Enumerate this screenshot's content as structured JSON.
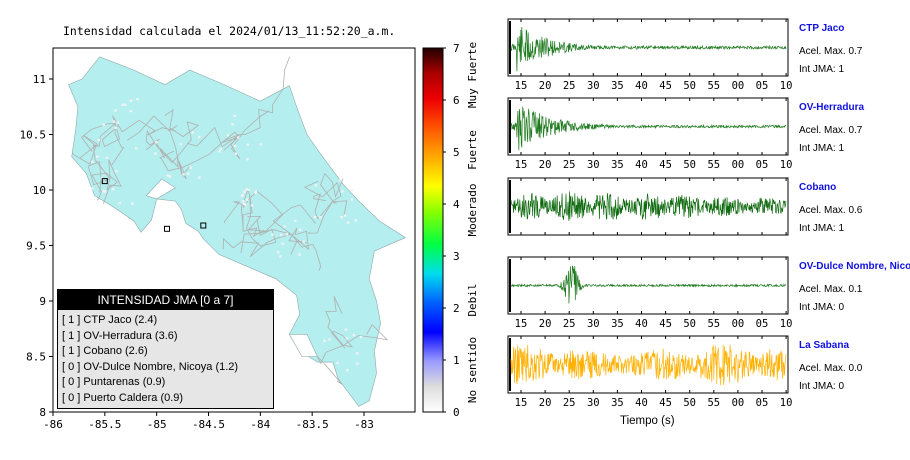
{
  "title": "Intensidad calculada el 2024/01/13_11:52:20_a.m.",
  "map": {
    "x_ticks": [
      "-86",
      "-85.5",
      "-85",
      "-84.5",
      "-84",
      "-83.5",
      "-83"
    ],
    "y_ticks": [
      "8",
      "8.5",
      "9",
      "9.5",
      "10",
      "10.5",
      "11"
    ],
    "land_color": "#b4eeee",
    "station_markers": 3
  },
  "colorbar": {
    "ticks": [
      "0",
      "1",
      "2",
      "3",
      "4",
      "5",
      "6",
      "7"
    ],
    "categories": [
      "No sentido",
      "Debil",
      "Moderado",
      "Fuerte",
      "Muy Fuerte"
    ]
  },
  "legend": {
    "title": "INTENSIDAD JMA [0 a 7]",
    "rows": [
      {
        "level": "[ 1 ]",
        "name": "CTP Jaco (2.4)"
      },
      {
        "level": "[ 1 ]",
        "name": "OV-Herradura (3.6)"
      },
      {
        "level": "[ 1 ]",
        "name": "Cobano (2.6)"
      },
      {
        "level": "[ 0 ]",
        "name": "OV-Dulce Nombre, Nicoya (1.2)"
      },
      {
        "level": "[ 0 ]",
        "name": "Puntarenas (0.9)"
      },
      {
        "level": "[ 0 ]",
        "name": "Puerto Caldera (0.9)"
      }
    ]
  },
  "waveforms": {
    "x_ticks": [
      "15",
      "20",
      "25",
      "30",
      "35",
      "40",
      "45",
      "50",
      "55",
      "00",
      "05",
      "10"
    ],
    "xlabel": "Tiempo (s)",
    "stations": [
      {
        "name": "CTP Jaco",
        "accel": "Acel. Max. 0.7",
        "jma": "Int JMA: 1",
        "color": "#1e7a1e"
      },
      {
        "name": "OV-Herradura",
        "accel": "Acel. Max. 0.7",
        "jma": "Int JMA: 1",
        "color": "#1e7a1e"
      },
      {
        "name": "Cobano",
        "accel": "Acel. Max. 0.6",
        "jma": "Int JMA: 1",
        "color": "#0f6a0f"
      },
      {
        "name": "OV-Dulce Nombre, Nicoya",
        "accel": "Acel. Max. 0.1",
        "jma": "Int JMA: 0",
        "color": "#1e7a1e"
      },
      {
        "name": "La Sabana",
        "accel": "Acel. Max. 0.0",
        "jma": "Int JMA: 0",
        "color": "#ffb000"
      }
    ]
  },
  "chart_data": [
    {
      "type": "scatter",
      "title": "Intensidad calculada el 2024/01/13_11:52:20_a.m.",
      "xlim": [
        -86,
        -82.6
      ],
      "ylim": [
        8,
        11.3
      ],
      "x_ticks": [
        -86,
        -85.5,
        -85,
        -84.5,
        -84,
        -83.5,
        -83
      ],
      "y_ticks": [
        8,
        8.5,
        9,
        9.5,
        10,
        10.5,
        11
      ],
      "colorbar_range": [
        0,
        7
      ],
      "legend_title": "INTENSIDAD JMA [0 a 7]",
      "stations": [
        {
          "name": "CTP Jaco",
          "jma": 1,
          "value": 2.4
        },
        {
          "name": "OV-Herradura",
          "jma": 1,
          "value": 3.6
        },
        {
          "name": "Cobano",
          "jma": 1,
          "value": 2.6
        },
        {
          "name": "OV-Dulce Nombre, Nicoya",
          "jma": 0,
          "value": 1.2
        },
        {
          "name": "Puntarenas",
          "jma": 0,
          "value": 0.9
        },
        {
          "name": "Puerto Caldera",
          "jma": 0,
          "value": 0.9
        }
      ]
    },
    {
      "type": "line",
      "xlabel": "Tiempo (s)",
      "x_tick_labels": [
        "15",
        "20",
        "25",
        "30",
        "35",
        "40",
        "45",
        "50",
        "55",
        "00",
        "05",
        "10"
      ],
      "series": [
        {
          "name": "CTP Jaco",
          "accel_max": 0.7,
          "jma": 1
        },
        {
          "name": "OV-Herradura",
          "accel_max": 0.7,
          "jma": 1
        },
        {
          "name": "Cobano",
          "accel_max": 0.6,
          "jma": 1
        },
        {
          "name": "OV-Dulce Nombre, Nicoya",
          "accel_max": 0.1,
          "jma": 0
        },
        {
          "name": "La Sabana",
          "accel_max": 0.0,
          "jma": 0
        }
      ]
    }
  ]
}
